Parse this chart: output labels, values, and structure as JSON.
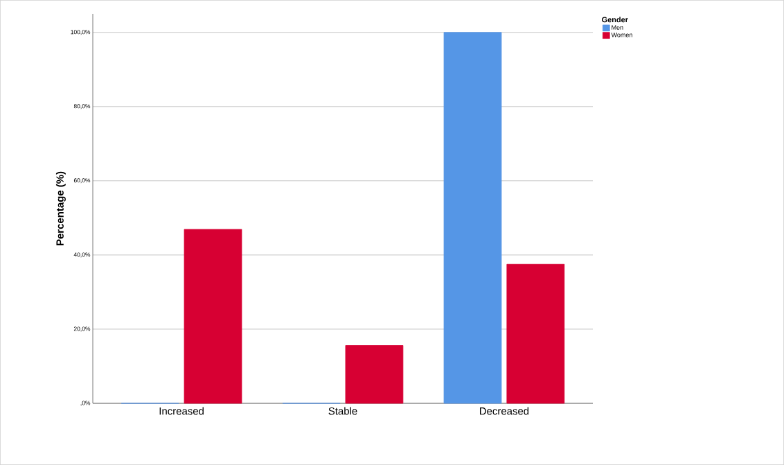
{
  "chart_data": {
    "type": "bar",
    "ylabel": "Percentage (%)",
    "legend_title": "Gender",
    "categories": [
      "Increased",
      "Stable",
      "Decreased"
    ],
    "series": [
      {
        "name": "Men",
        "color": "#5596e6",
        "values": [
          0,
          0,
          100
        ]
      },
      {
        "name": "Women",
        "color": "#d70033",
        "values": [
          46.9,
          15.6,
          37.5
        ]
      }
    ],
    "ylim": [
      0,
      105
    ],
    "yticks": [
      {
        "value": 0,
        "label": ",0%"
      },
      {
        "value": 20,
        "label": "20,0%"
      },
      {
        "value": 40,
        "label": "40,0%"
      },
      {
        "value": 60,
        "label": "60,0%"
      },
      {
        "value": 80,
        "label": "80,0%"
      },
      {
        "value": 100,
        "label": "100,0%"
      }
    ],
    "grid": "y",
    "legend": "top right"
  }
}
